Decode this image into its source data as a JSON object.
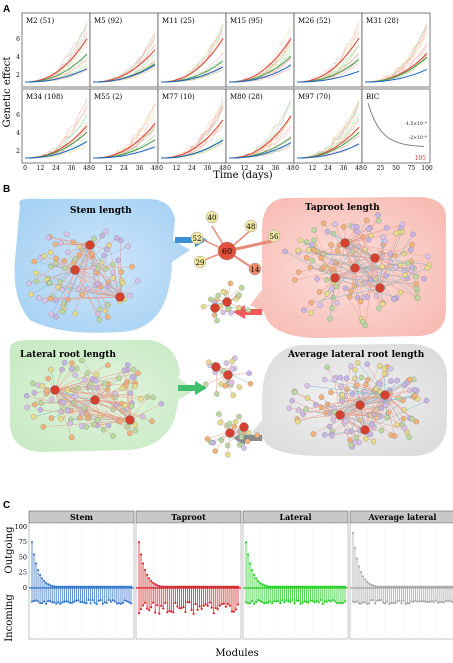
{
  "panels": {
    "a": {
      "letter": "A",
      "ylabel": "Genetic effect",
      "xlabel": "Time (days)",
      "x_ticks": [
        "0",
        "12",
        "24",
        "36",
        "48"
      ],
      "y_ticks": [
        "2",
        "4",
        "6"
      ],
      "modules": [
        "M2 (51)",
        "M5 (92)",
        "M11 (25)",
        "M15 (95)",
        "M26 (52)",
        "M31 (28)",
        "M34 (108)",
        "M55 (2)",
        "M77 (10)",
        "M80 (28)",
        "M97 (70)"
      ],
      "bic": {
        "label": "BIC",
        "x_ticks": [
          "0",
          "25",
          "50",
          "75",
          "100"
        ],
        "y_labels": [
          "-1.5×10⁻⁶",
          "-2×10⁻⁶"
        ],
        "min_label": "105"
      }
    },
    "b": {
      "letter": "B",
      "titles": [
        "Stem length",
        "Taproot length",
        "Lateral root length",
        "Average lateral root length"
      ],
      "hub_nodes": [
        "40",
        "48",
        "52",
        "60",
        "56",
        "29",
        "14"
      ]
    },
    "c": {
      "letter": "C",
      "facets": [
        "Stem",
        "Taproot",
        "Lateral",
        "Average lateral"
      ],
      "colors": [
        "#3a78c8",
        "#d9262c",
        "#2fcc2f",
        "#a8a8a8"
      ],
      "y_ticks": [
        "100",
        "75",
        "50",
        "25",
        "0"
      ],
      "ylabel_top": "Outgoing",
      "ylabel_bottom": "Incoming",
      "xlabel": "Modules"
    }
  }
}
